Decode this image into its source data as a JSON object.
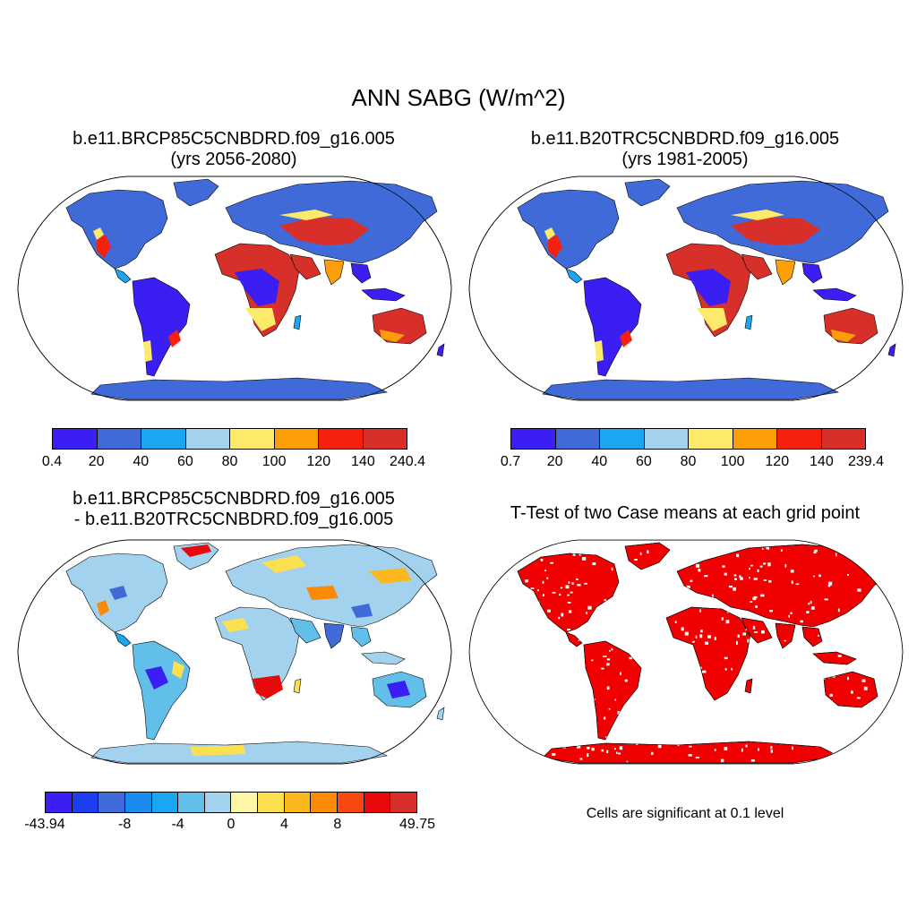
{
  "title": "ANN SABG (W/m^2)",
  "panels": [
    {
      "title_line1": "b.e11.BRCP85C5CNBDRD.f09_g16.005",
      "title_line2": "(yrs 2056-2080)",
      "colorbar": {
        "colors": [
          "#3b1ef2",
          "#3f6ad8",
          "#1aa6f0",
          "#a2d2ee",
          "#fde96a",
          "#fb9e07",
          "#f7200f",
          "#d72f29"
        ],
        "labels": [
          "0.4",
          "20",
          "40",
          "60",
          "80",
          "100",
          "120",
          "140",
          "240.4"
        ]
      }
    },
    {
      "title_line1": "b.e11.B20TRC5CNBDRD.f09_g16.005",
      "title_line2": "(yrs 1981-2005)",
      "colorbar": {
        "colors": [
          "#3b1ef2",
          "#3f6ad8",
          "#1aa6f0",
          "#a2d2ee",
          "#fde96a",
          "#fb9e07",
          "#f7200f",
          "#d72f29"
        ],
        "labels": [
          "0.7",
          "20",
          "40",
          "60",
          "80",
          "100",
          "120",
          "140",
          "239.4"
        ]
      }
    },
    {
      "title_line1": "b.e11.BRCP85C5CNBDRD.f09_g16.005",
      "title_line2": "- b.e11.B20TRC5CNBDRD.f09_g16.005",
      "colorbar": {
        "colors": [
          "#3b1ef2",
          "#1d3df0",
          "#3f6ad8",
          "#1a8cf0",
          "#1aa6f0",
          "#62bfea",
          "#a2d2ee",
          "#fff7a8",
          "#fde050",
          "#fbb81e",
          "#fb8a07",
          "#f8480f",
          "#e80a0a",
          "#d72f29"
        ],
        "labels": [
          "-43.94",
          "-8",
          "-4",
          "0",
          "4",
          "8",
          "49.75"
        ],
        "label_positions": [
          0,
          3,
          5,
          7,
          9,
          11,
          14
        ]
      }
    },
    {
      "title_line1": "T-Test of two Case means at each grid point",
      "note": "Cells are significant at 0.1 level",
      "fill": "#f00000"
    }
  ]
}
